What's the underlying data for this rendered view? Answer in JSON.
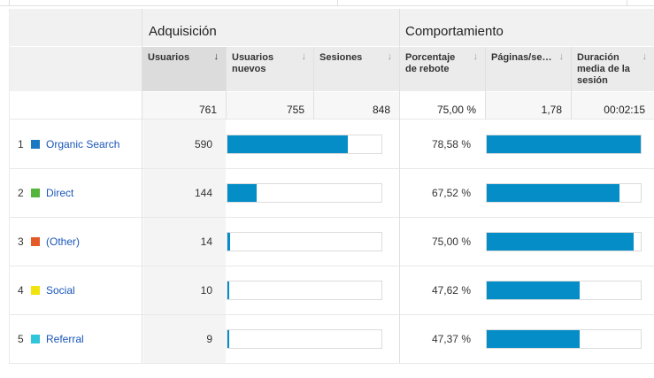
{
  "groups": {
    "acquisition": "Adquisición",
    "behavior": "Comportamiento"
  },
  "columns": [
    {
      "label": "Usuarios",
      "arrow": "↓",
      "sorted": true
    },
    {
      "label": "Usuarios nuevos",
      "arrow": "↓"
    },
    {
      "label": "Sesiones",
      "arrow": "↓"
    },
    {
      "label": "Porcentaje de rebote",
      "arrow": "↓"
    },
    {
      "label": "Páginas/se…",
      "arrow": "↓"
    },
    {
      "label": "Duración media de la sesión",
      "arrow": "↓"
    }
  ],
  "totals": {
    "users": "761",
    "new_users": "755",
    "sessions": "848",
    "bounce_rate": "75,00 %",
    "pages_per_session": "1,78",
    "avg_duration": "00:02:15"
  },
  "rows": [
    {
      "num": "1",
      "label": "Organic Search",
      "color": "#1c77c3",
      "users": "590",
      "users_value": 590,
      "bounce": "78,58 %",
      "bounce_value": 78.58
    },
    {
      "num": "2",
      "label": "Direct",
      "color": "#54b53d",
      "users": "144",
      "users_value": 144,
      "bounce": "67,52 %",
      "bounce_value": 67.52
    },
    {
      "num": "3",
      "label": "(Other)",
      "color": "#e35a27",
      "users": "14",
      "users_value": 14,
      "bounce": "75,00 %",
      "bounce_value": 75.0
    },
    {
      "num": "4",
      "label": "Social",
      "color": "#f1e40c",
      "users": "10",
      "users_value": 10,
      "bounce": "47,62 %",
      "bounce_value": 47.62
    },
    {
      "num": "5",
      "label": "Referral",
      "color": "#2fc5db",
      "users": "9",
      "users_value": 9,
      "bounce": "47,37 %",
      "bounce_value": 47.37
    }
  ],
  "colors": {
    "bar": "#058dc7",
    "link": "#1a56b8"
  }
}
